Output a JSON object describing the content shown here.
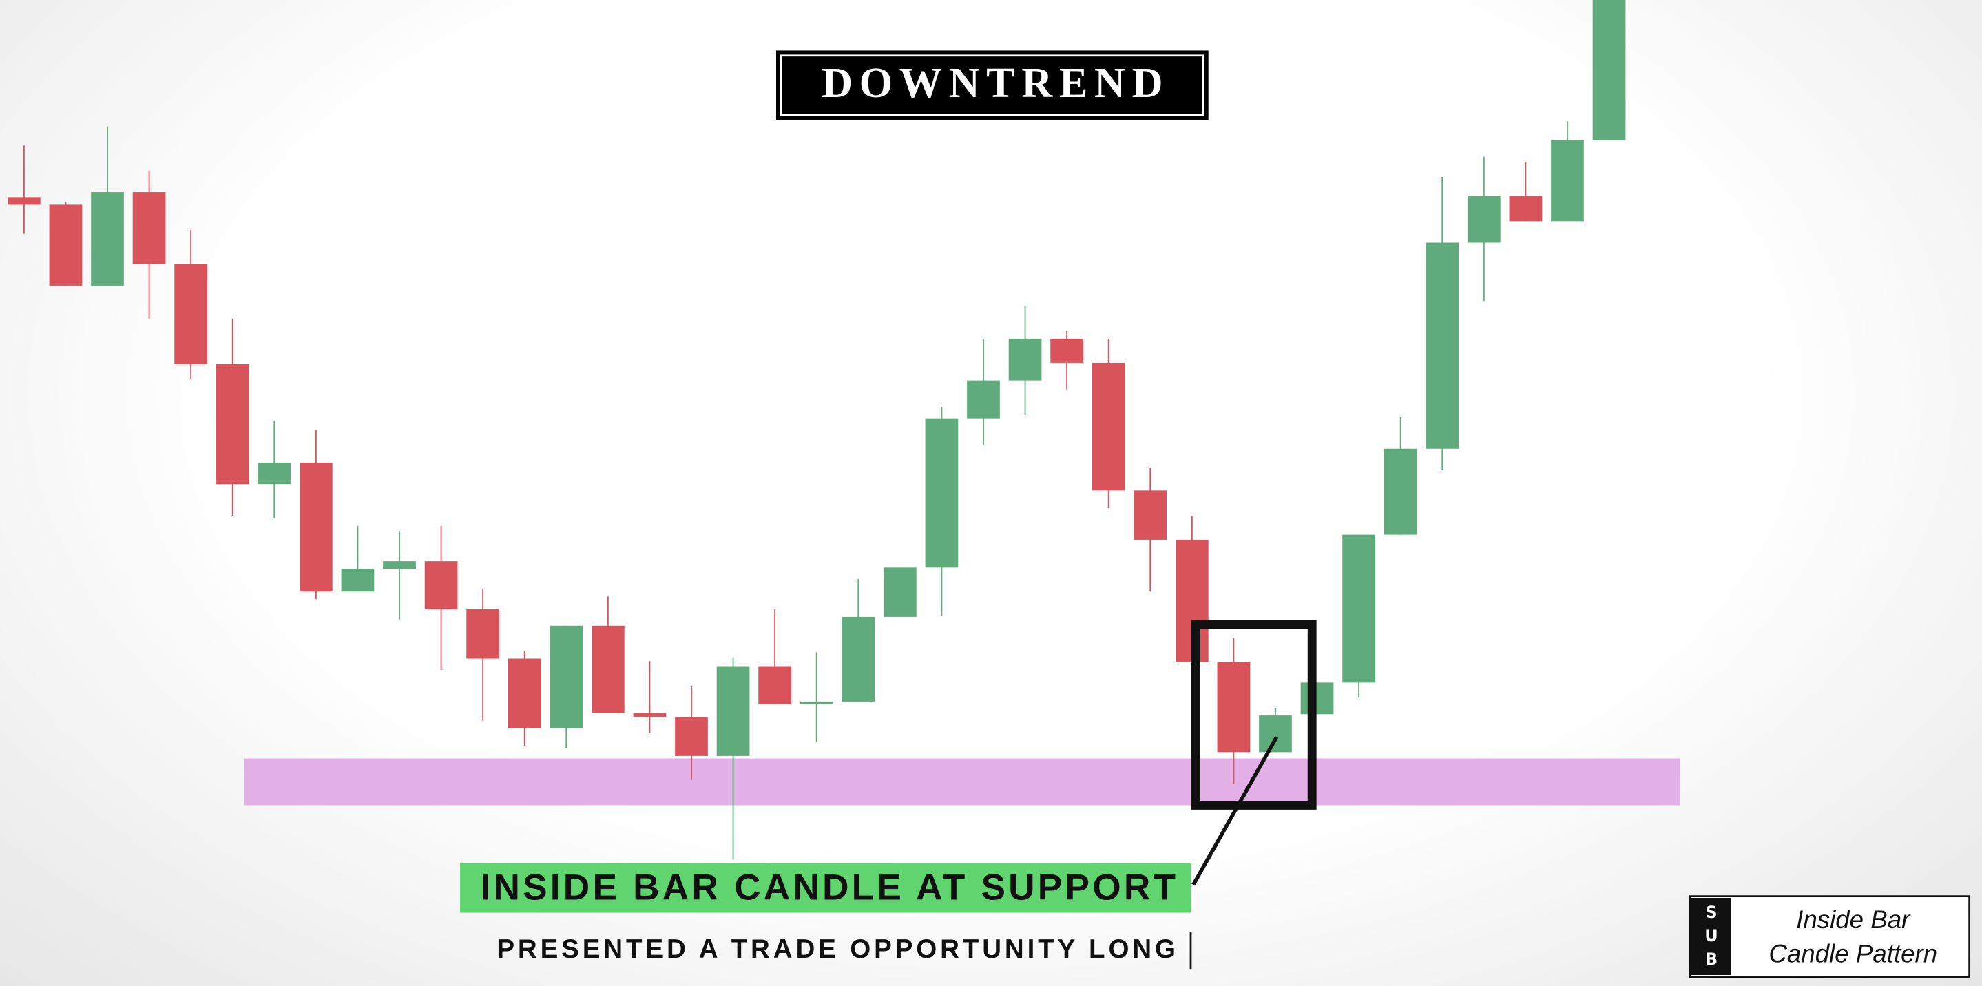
{
  "chart_data": {
    "type": "candlestick",
    "title": "DOWNTREND",
    "annotation": "INSIDE BAR CANDLE AT SUPPORT",
    "subtitle": "PRESENTED A TRADE OPPORTUNITY LONG",
    "up_color": "#5fab7b",
    "down_color": "#d8535a",
    "ylim": [
      0,
      780
    ],
    "support_zone": {
      "range": [
        143,
        180
      ],
      "color": "#e2b0e6"
    },
    "series": {
      "open": [
        624,
        618,
        554,
        628,
        571,
        492,
        397,
        414,
        312,
        330,
        336,
        298,
        259,
        204,
        285,
        216,
        213,
        182,
        253,
        223,
        225,
        292,
        331,
        449,
        479,
        512,
        493,
        392,
        353,
        256,
        185,
        215,
        240,
        357,
        425,
        588,
        625,
        605,
        669
      ],
      "high": [
        665,
        620,
        680,
        645,
        598,
        528,
        447,
        440,
        364,
        360,
        364,
        314,
        265,
        285,
        308,
        257,
        237,
        260,
        298,
        264,
        322,
        331,
        458,
        512,
        538,
        518,
        512,
        410,
        372,
        275,
        220,
        240,
        357,
        450,
        640,
        656,
        652,
        684,
        780
      ],
      "low": [
        595,
        554,
        554,
        528,
        480,
        372,
        370,
        306,
        312,
        290,
        250,
        210,
        190,
        188,
        216,
        200,
        163,
        100,
        223,
        193,
        225,
        292,
        293,
        428,
        452,
        472,
        378,
        312,
        256,
        160,
        185,
        215,
        228,
        357,
        408,
        542,
        605,
        605,
        669
      ],
      "close": [
        618,
        554,
        628,
        571,
        492,
        397,
        414,
        312,
        330,
        336,
        298,
        259,
        204,
        285,
        216,
        213,
        182,
        253,
        223,
        225,
        292,
        331,
        449,
        479,
        512,
        493,
        392,
        353,
        256,
        185,
        214,
        240,
        357,
        425,
        588,
        625,
        605,
        669,
        780
      ]
    }
  },
  "badge": {
    "letters": "SUB",
    "lines": [
      "Inside Bar",
      "Candle Pattern"
    ]
  }
}
